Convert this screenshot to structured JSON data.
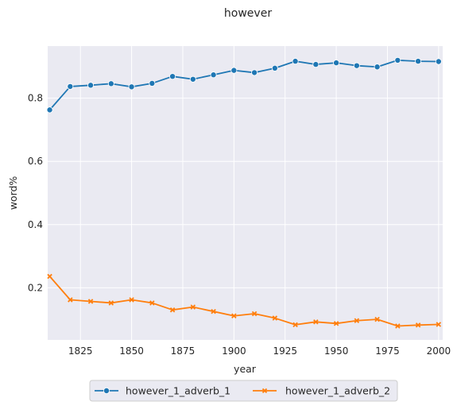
{
  "chart_data": {
    "type": "line",
    "title": "however",
    "xlabel": "year",
    "ylabel": "word%",
    "xlim": [
      1809,
      2002
    ],
    "ylim": [
      0.035,
      0.965
    ],
    "xticks": [
      1825,
      1850,
      1875,
      1900,
      1925,
      1950,
      1975,
      2000
    ],
    "yticks": [
      0.2,
      0.4,
      0.6,
      0.8
    ],
    "ytick_labels": [
      "0.2",
      "0.4",
      "0.6",
      "0.8"
    ],
    "grid": true,
    "legend_position": "bottom-center",
    "x": [
      1810,
      1820,
      1830,
      1840,
      1850,
      1860,
      1870,
      1880,
      1890,
      1900,
      1910,
      1920,
      1930,
      1940,
      1950,
      1960,
      1970,
      1980,
      1990,
      2000
    ],
    "series": [
      {
        "name": "however_1_adverb_1",
        "color": "#1f77b4",
        "marker": "circle",
        "values": [
          0.763,
          0.837,
          0.841,
          0.846,
          0.836,
          0.847,
          0.869,
          0.86,
          0.874,
          0.888,
          0.881,
          0.895,
          0.917,
          0.907,
          0.912,
          0.903,
          0.899,
          0.92,
          0.917,
          0.916
        ]
      },
      {
        "name": "however_1_adverb_2",
        "color": "#ff7f0e",
        "marker": "x",
        "values": [
          0.236,
          0.162,
          0.157,
          0.152,
          0.162,
          0.152,
          0.13,
          0.139,
          0.125,
          0.111,
          0.118,
          0.104,
          0.083,
          0.092,
          0.087,
          0.096,
          0.1,
          0.079,
          0.082,
          0.084
        ]
      }
    ]
  }
}
